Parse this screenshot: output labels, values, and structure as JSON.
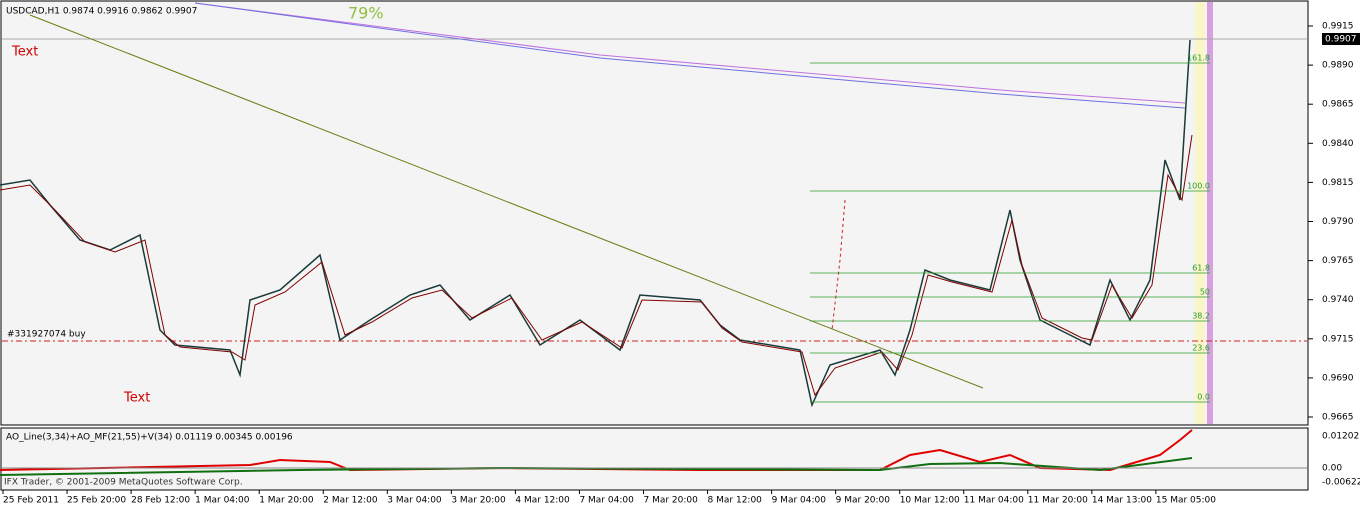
{
  "main_panel": {
    "title": "USDCAD,H1  0.9874 0.9916 0.9862 0.9907",
    "texts": [
      "Text",
      "Text"
    ],
    "order_label": "#331927074 buy",
    "percent": "79%",
    "price_labels": [
      "0.9915",
      "0.9890",
      "0.9865",
      "0.9840",
      "0.9815",
      "0.9790",
      "0.9765",
      "0.9740",
      "0.9715",
      "0.9690",
      "0.9665"
    ],
    "current_price": "0.9907",
    "fib_levels": [
      "161.8",
      "100.0",
      "61.8",
      "50",
      "38.2",
      "23.6",
      "0.0"
    ]
  },
  "indicator_panel": {
    "title": "AO_Line(3,34)+AO_MF(21,55)+V(34) 0.01119 0.00345 0.00196",
    "axis_labels": [
      "0.01202",
      "0.00",
      "-0.00622"
    ]
  },
  "time_axis": [
    "25 Feb 2011",
    "25 Feb 20:00",
    "28 Feb 12:00",
    "1 Mar 04:00",
    "1 Mar 20:00",
    "2 Mar 12:00",
    "3 Mar 04:00",
    "3 Mar 20:00",
    "4 Mar 12:00",
    "7 Mar 04:00",
    "7 Mar 20:00",
    "8 Mar 12:00",
    "9 Mar 04:00",
    "9 Mar 20:00",
    "10 Mar 12:00",
    "11 Mar 04:00",
    "11 Mar 20:00",
    "14 Mar 13:00",
    "15 Mar 05:00"
  ],
  "copyright": "IFX Trader, © 2001-2009 MetaQuotes Software Corp."
}
